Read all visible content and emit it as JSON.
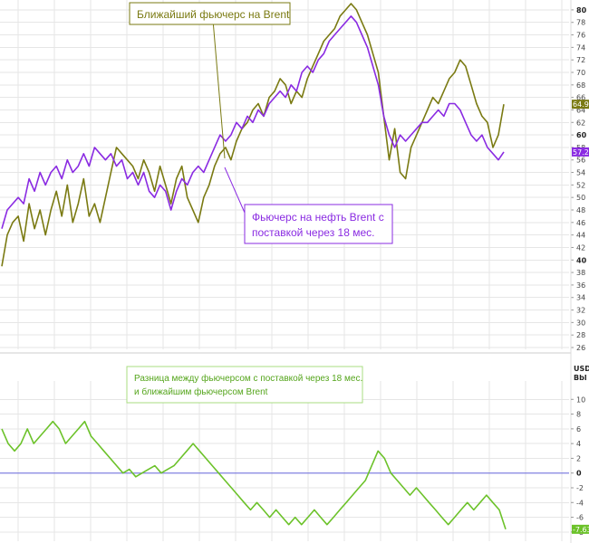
{
  "chart_data": [
    {
      "type": "line",
      "panel": "top",
      "ylim": [
        26,
        81
      ],
      "yticks": [
        26,
        28,
        30,
        32,
        34,
        36,
        38,
        40,
        42,
        44,
        46,
        48,
        50,
        52,
        54,
        56,
        58,
        60,
        62,
        64,
        66,
        68,
        70,
        72,
        74,
        76,
        78,
        80
      ],
      "ytick_labels": [
        "26",
        "28",
        "30",
        "32",
        "34",
        "36",
        "38",
        "40",
        "42",
        "44",
        "46",
        "48",
        "50",
        "52",
        "54",
        "56",
        "58",
        "60",
        "62",
        "64",
        "66",
        "68",
        "70",
        "72",
        "74",
        "76",
        "78",
        "80"
      ],
      "bold_ticks": [
        "40",
        "60",
        "80"
      ],
      "grid": true,
      "series": [
        {
          "key": "front_month",
          "color": "#7a7a12",
          "last_value_label": "64.91",
          "values": [
            39,
            44,
            46,
            47,
            43,
            49,
            45,
            48,
            44,
            48,
            51,
            47,
            52,
            46,
            49,
            53,
            47,
            49,
            46,
            50,
            54,
            58,
            57,
            56,
            55,
            53,
            56,
            54,
            51,
            55,
            52,
            49,
            53,
            55,
            50,
            48,
            46,
            50,
            52,
            55,
            57,
            58,
            56,
            59,
            61,
            62,
            64,
            65,
            63,
            66,
            67,
            69,
            68,
            65,
            67,
            66,
            69,
            71,
            73,
            75,
            76,
            77,
            79,
            80,
            81,
            80,
            78,
            76,
            73,
            70,
            63,
            56,
            61,
            54,
            53,
            58,
            60,
            62,
            64,
            66,
            65,
            67,
            69,
            70,
            72,
            71,
            68,
            65,
            63,
            62,
            58,
            60,
            64.91
          ]
        },
        {
          "key": "18m_forward",
          "color": "#8a2be2",
          "last_value_label": "57.28",
          "values": [
            45,
            48,
            49,
            50,
            49,
            53,
            51,
            54,
            52,
            54,
            55,
            53,
            56,
            54,
            55,
            57,
            55,
            58,
            57,
            56,
            57,
            55,
            56,
            53,
            54,
            52,
            54,
            51,
            50,
            52,
            51,
            48,
            51,
            53,
            52,
            54,
            55,
            54,
            56,
            58,
            60,
            59,
            60,
            62,
            61,
            63,
            62,
            64,
            63,
            65,
            66,
            67,
            66,
            68,
            67,
            70,
            71,
            70,
            72,
            73,
            75,
            76,
            77,
            78,
            79,
            78,
            76,
            74,
            71,
            68,
            63,
            60,
            58,
            60,
            59,
            60,
            61,
            62,
            62,
            63,
            64,
            63,
            65,
            65,
            64,
            62,
            60,
            59,
            60,
            58,
            57,
            56,
            57.28
          ]
        }
      ]
    },
    {
      "type": "line",
      "panel": "bottom",
      "ylim": [
        -9,
        12
      ],
      "yticks": [
        -8,
        -6,
        -4,
        -2,
        0,
        2,
        4,
        6,
        8,
        10
      ],
      "ytick_labels": [
        "-8",
        "-6",
        "-4",
        "-2",
        "0",
        "2",
        "4",
        "6",
        "8",
        "10"
      ],
      "bold_ticks": [
        "0"
      ],
      "unit_label": [
        "USD",
        "Bbl"
      ],
      "zero_line_color": "#8080e0",
      "grid": true,
      "series": [
        {
          "key": "spread",
          "color": "#6cc22a",
          "last_value_label": "-7.63",
          "values": [
            6,
            4,
            3,
            4,
            6,
            4,
            5,
            6,
            7,
            6,
            4,
            5,
            6,
            7,
            5,
            4,
            3,
            2,
            1,
            0,
            0.5,
            -0.5,
            0,
            0.5,
            1,
            0,
            0.5,
            1,
            2,
            3,
            4,
            3,
            2,
            1,
            0,
            -1,
            -2,
            -3,
            -4,
            -5,
            -4,
            -5,
            -6,
            -5,
            -6,
            -7,
            -6,
            -7,
            -6,
            -5,
            -6,
            -7,
            -6,
            -5,
            -4,
            -3,
            -2,
            -1,
            1,
            3,
            2,
            0,
            -1,
            -2,
            -3,
            -2,
            -3,
            -4,
            -5,
            -6,
            -7,
            -6,
            -5,
            -4,
            -5,
            -4,
            -3,
            -4,
            -5,
            -7.63
          ]
        }
      ]
    }
  ],
  "annotations": {
    "front_label": "Ближайший фьючерс на Brent",
    "forward_label_line1": "Фьючерс на нефть Brent с",
    "forward_label_line2": "поставкой через 18 мес.",
    "spread_label_line1": "Разница между фьючерсом с поставкой через 18 мес.",
    "spread_label_line2": "и  ближайшим фьючерсом Brent"
  },
  "colors": {
    "front_month": "#7a7a12",
    "forward": "#8a2be2",
    "spread": "#6cc22a"
  }
}
